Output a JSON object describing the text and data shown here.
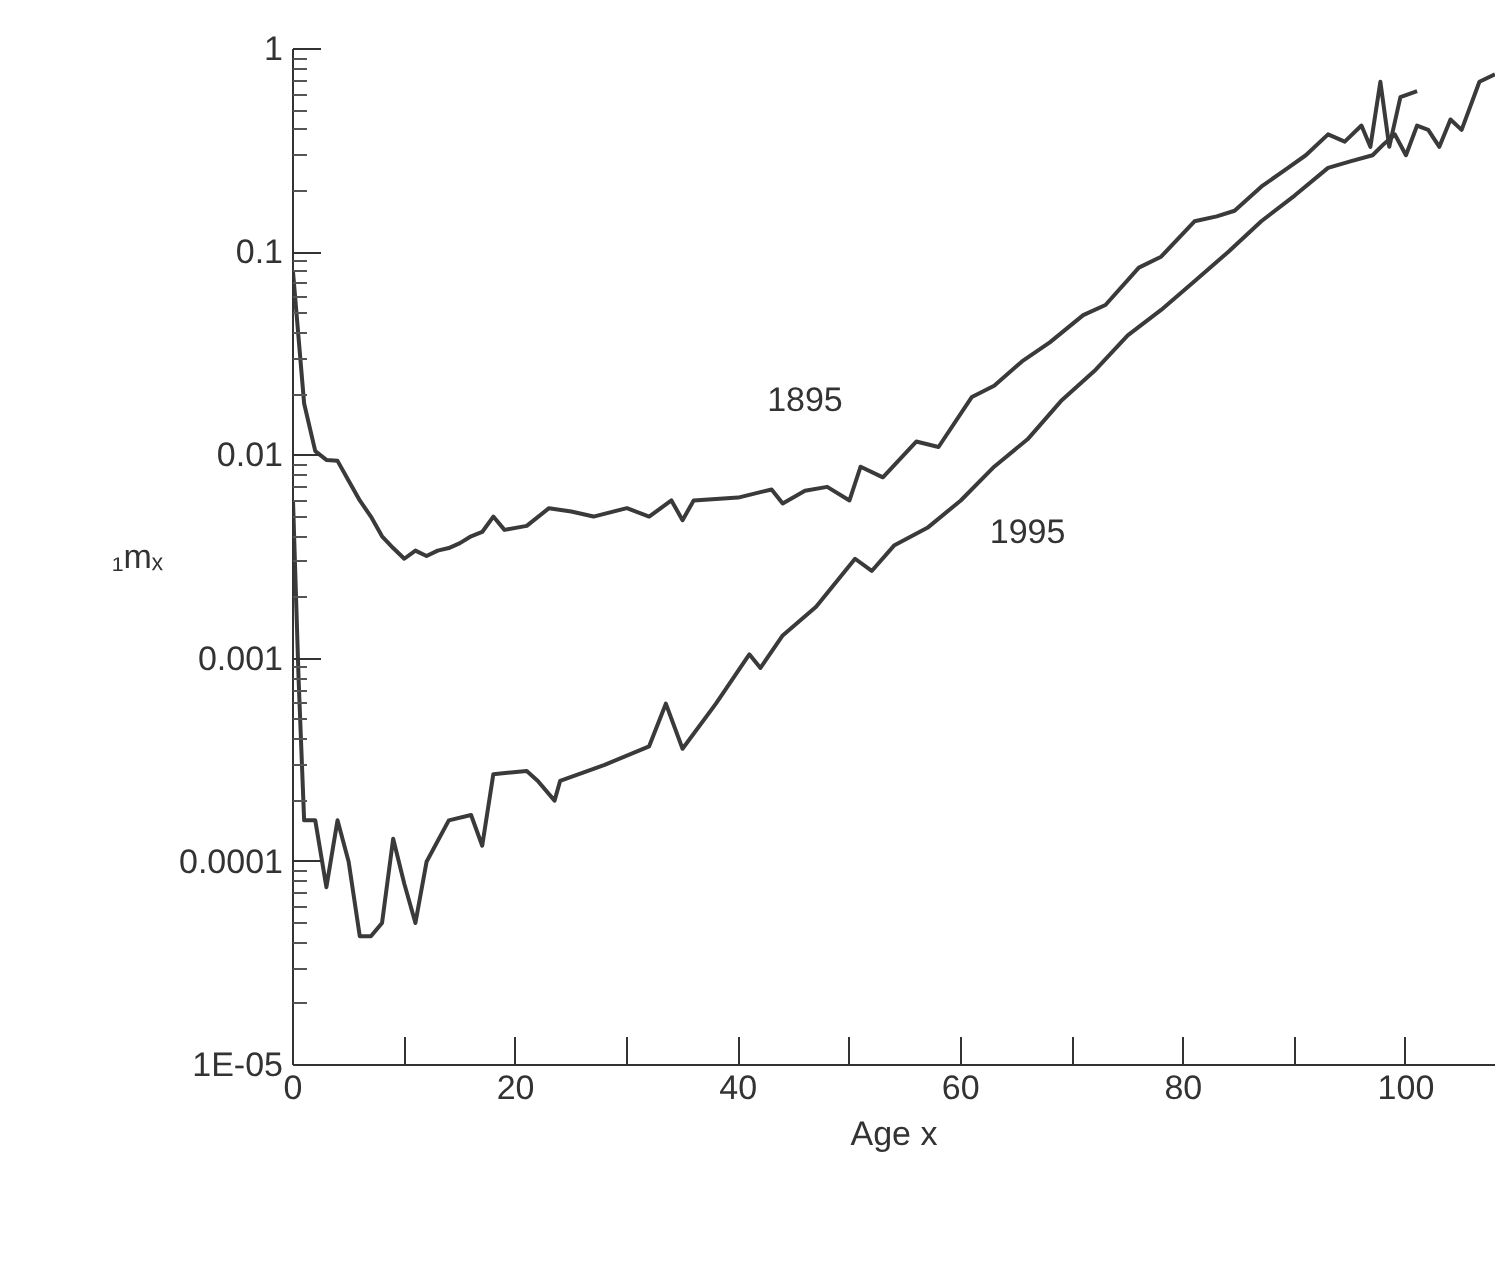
{
  "chart_data": {
    "type": "line",
    "xlabel": "Age x",
    "ylabel": "₁mₓ",
    "log": "y",
    "grid": false,
    "line_style": "solid",
    "marker": "none",
    "xlim": [
      0,
      108
    ],
    "ylim": [
      1e-05,
      1
    ],
    "xticks": [
      0,
      {
        "value": 10,
        "label": null
      },
      20,
      {
        "value": 30,
        "label": null
      },
      40,
      {
        "value": 50,
        "label": null
      },
      60,
      {
        "value": 70,
        "label": null
      },
      80,
      {
        "value": 90,
        "label": null
      },
      100
    ],
    "yticks": [
      {
        "value": 1e-05,
        "label": "1E-05"
      },
      0.0001,
      0.001,
      0.01,
      0.1,
      1
    ],
    "series": [
      {
        "name": "1895",
        "color": "#3a3a3a",
        "x": [
          0,
          1,
          2,
          3,
          4,
          5,
          6,
          7,
          8,
          9,
          10,
          11,
          12,
          13,
          14,
          15,
          16,
          17,
          18,
          19,
          21,
          23,
          25,
          27,
          30,
          32,
          34,
          35,
          36,
          40,
          42,
          43,
          44,
          46,
          48,
          50,
          51,
          53,
          56,
          58,
          61,
          63,
          65.5,
          68,
          71,
          73,
          76,
          78,
          81,
          83,
          84.6,
          87,
          89.4,
          91,
          93,
          94.5,
          96,
          96.8,
          97.7,
          98.5,
          99.5,
          101
        ],
        "values": [
          0.08,
          0.018,
          0.0105,
          0.0095,
          0.0094,
          0.0075,
          0.006,
          0.005,
          0.004,
          0.0035,
          0.0031,
          0.0034,
          0.0032,
          0.0034,
          0.0035,
          0.0037,
          0.004,
          0.0042,
          0.005,
          0.0043,
          0.0045,
          0.0055,
          0.0053,
          0.005,
          0.0055,
          0.005,
          0.006,
          0.0048,
          0.006,
          0.0062,
          0.0066,
          0.0068,
          0.0058,
          0.0067,
          0.007,
          0.006,
          0.0088,
          0.0078,
          0.0117,
          0.011,
          0.0194,
          0.022,
          0.029,
          0.036,
          0.049,
          0.055,
          0.084,
          0.095,
          0.142,
          0.15,
          0.16,
          0.21,
          0.26,
          0.3,
          0.38,
          0.35,
          0.42,
          0.33,
          0.69,
          0.33,
          0.58,
          0.62
        ]
      },
      {
        "name": "1995",
        "color": "#3a3a3a",
        "x": [
          0,
          0.5,
          1,
          2,
          3,
          4,
          5,
          6,
          7,
          8,
          9,
          10,
          11,
          12,
          14,
          16,
          17,
          18,
          21,
          22,
          23.5,
          24,
          28,
          32,
          33.5,
          35,
          38,
          41,
          42,
          44,
          47,
          50.5,
          52,
          54,
          57,
          60,
          63,
          66,
          69,
          72,
          75,
          78,
          81,
          84,
          87,
          90,
          93,
          95,
          97,
          98,
          99,
          100,
          101,
          102,
          103,
          104,
          105,
          106.6,
          108
        ],
        "values": [
          0.006,
          0.0008,
          0.00016,
          0.00016,
          7.5e-05,
          0.00016,
          0.0001,
          4.3e-05,
          4.3e-05,
          5e-05,
          0.00013,
          7.8e-05,
          5e-05,
          0.0001,
          0.00016,
          0.00017,
          0.00012,
          0.00027,
          0.00028,
          0.00025,
          0.0002,
          0.00025,
          0.0003,
          0.00037,
          0.0006,
          0.00036,
          0.0006,
          0.00105,
          0.0009,
          0.0013,
          0.0018,
          0.0031,
          0.0027,
          0.0036,
          0.0044,
          0.006,
          0.0088,
          0.012,
          0.0185,
          0.026,
          0.039,
          0.052,
          0.072,
          0.1,
          0.142,
          0.19,
          0.26,
          0.28,
          0.3,
          0.34,
          0.38,
          0.3,
          0.42,
          0.4,
          0.33,
          0.45,
          0.4,
          0.69,
          0.75
        ]
      }
    ]
  }
}
